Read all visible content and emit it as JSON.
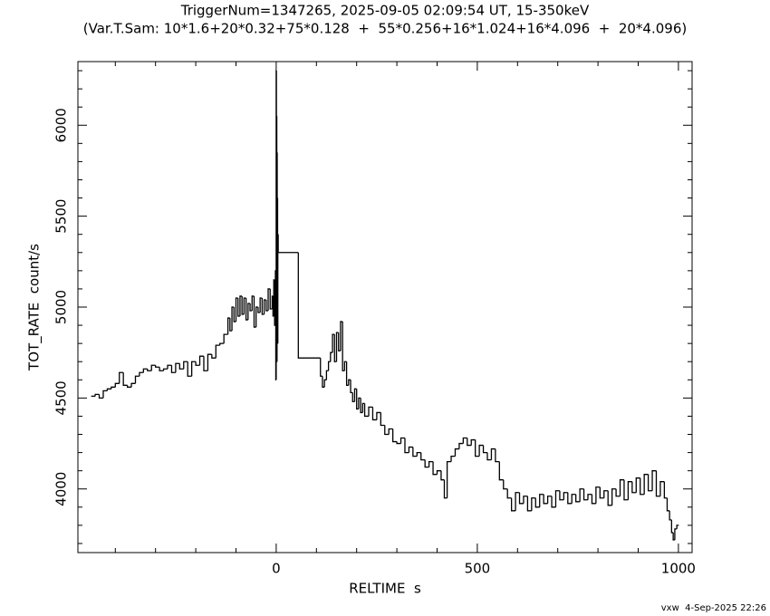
{
  "chart_data": {
    "type": "step",
    "title": "TriggerNum=1347265, 2025-09-05 02:09:54 UT, 15-350keV",
    "subtitle": "(Var.T.Sam: 10*1.6+20*0.32+75*0.128  +  55*0.256+16*1.024+16*4.096  +  20*4.096)",
    "x_label": "RELTIME  s",
    "y_label": "TOT_RATE  count/s",
    "footer": "vxw  4-Sep-2025 22:26",
    "color": "#000000",
    "xlim": [
      -493,
      1034
    ],
    "ylim": [
      3650,
      6350
    ],
    "xticks": [
      0,
      500,
      1000
    ],
    "yticks": [
      4000,
      4500,
      5000,
      5500,
      6000
    ],
    "xminorticks": [
      -400,
      -300,
      -200,
      -100,
      100,
      200,
      300,
      400,
      600,
      700,
      800,
      900
    ],
    "yminorticks": [
      3700,
      3800,
      3900,
      4100,
      4200,
      4300,
      4400,
      4600,
      4700,
      4800,
      4900,
      5100,
      5200,
      5300,
      5400,
      5600,
      5700,
      5800,
      5900,
      6100,
      6200,
      6300
    ],
    "x": [
      -460,
      -450,
      -440,
      -430,
      -420,
      -410,
      -400,
      -390,
      -380,
      -370,
      -360,
      -350,
      -340,
      -330,
      -320,
      -310,
      -300,
      -290,
      -280,
      -270,
      -260,
      -250,
      -240,
      -230,
      -220,
      -210,
      -200,
      -190,
      -180,
      -170,
      -160,
      -150,
      -140,
      -130,
      -120,
      -115,
      -110,
      -105,
      -100,
      -95,
      -90,
      -85,
      -80,
      -75,
      -70,
      -65,
      -60,
      -55,
      -50,
      -45,
      -40,
      -35,
      -30,
      -25,
      -20,
      -15,
      -10,
      -8,
      -6,
      -4,
      -2,
      -1,
      0,
      0.5,
      1,
      1.5,
      2,
      2.5,
      3,
      3.5,
      4,
      5,
      55,
      110,
      115,
      120,
      125,
      130,
      135,
      140,
      145,
      150,
      155,
      160,
      165,
      170,
      175,
      180,
      185,
      190,
      195,
      200,
      205,
      210,
      215,
      220,
      230,
      240,
      250,
      260,
      270,
      280,
      290,
      300,
      310,
      320,
      330,
      340,
      350,
      360,
      370,
      380,
      390,
      400,
      410,
      418,
      425,
      435,
      445,
      455,
      465,
      475,
      485,
      495,
      505,
      515,
      525,
      535,
      545,
      555,
      565,
      575,
      585,
      595,
      605,
      615,
      625,
      635,
      645,
      655,
      665,
      675,
      685,
      695,
      705,
      715,
      725,
      735,
      745,
      755,
      765,
      775,
      785,
      795,
      805,
      815,
      825,
      835,
      845,
      855,
      865,
      875,
      885,
      895,
      905,
      915,
      925,
      935,
      945,
      955,
      965,
      972,
      978,
      983,
      987,
      991,
      996
    ],
    "values": [
      4510,
      4520,
      4500,
      4540,
      4550,
      4560,
      4580,
      4640,
      4570,
      4560,
      4580,
      4620,
      4640,
      4660,
      4650,
      4680,
      4670,
      4650,
      4660,
      4680,
      4640,
      4690,
      4660,
      4700,
      4620,
      4700,
      4680,
      4730,
      4650,
      4740,
      4720,
      4790,
      4800,
      4850,
      4940,
      4870,
      5000,
      4920,
      5050,
      4950,
      5060,
      4960,
      5050,
      4930,
      5020,
      4980,
      5060,
      4890,
      5000,
      4970,
      5050,
      4960,
      5040,
      4980,
      5100,
      4990,
      5060,
      4950,
      5150,
      4900,
      5200,
      4600,
      6300,
      4750,
      6050,
      4700,
      5850,
      4900,
      5600,
      4800,
      5400,
      5300,
      4720,
      4620,
      4560,
      4600,
      4650,
      4700,
      4750,
      4850,
      4700,
      4860,
      4760,
      4920,
      4650,
      4700,
      4570,
      4600,
      4530,
      4480,
      4550,
      4440,
      4500,
      4420,
      4470,
      4400,
      4450,
      4380,
      4420,
      4350,
      4300,
      4330,
      4260,
      4250,
      4280,
      4200,
      4230,
      4180,
      4200,
      4160,
      4120,
      4150,
      4080,
      4100,
      4050,
      3950,
      4150,
      4180,
      4220,
      4250,
      4280,
      4240,
      4270,
      4180,
      4240,
      4200,
      4160,
      4220,
      4150,
      4050,
      4000,
      3950,
      3880,
      3980,
      3920,
      3960,
      3880,
      3950,
      3900,
      3970,
      3920,
      3960,
      3900,
      3990,
      3940,
      3980,
      3920,
      3970,
      3930,
      4000,
      3940,
      3970,
      3920,
      4010,
      3950,
      3990,
      3910,
      4000,
      3960,
      4050,
      3940,
      4040,
      3980,
      4060,
      3970,
      4080,
      3990,
      4100,
      3960,
      4040,
      3950,
      3880,
      3830,
      3760,
      3720,
      3780,
      3800
    ]
  }
}
